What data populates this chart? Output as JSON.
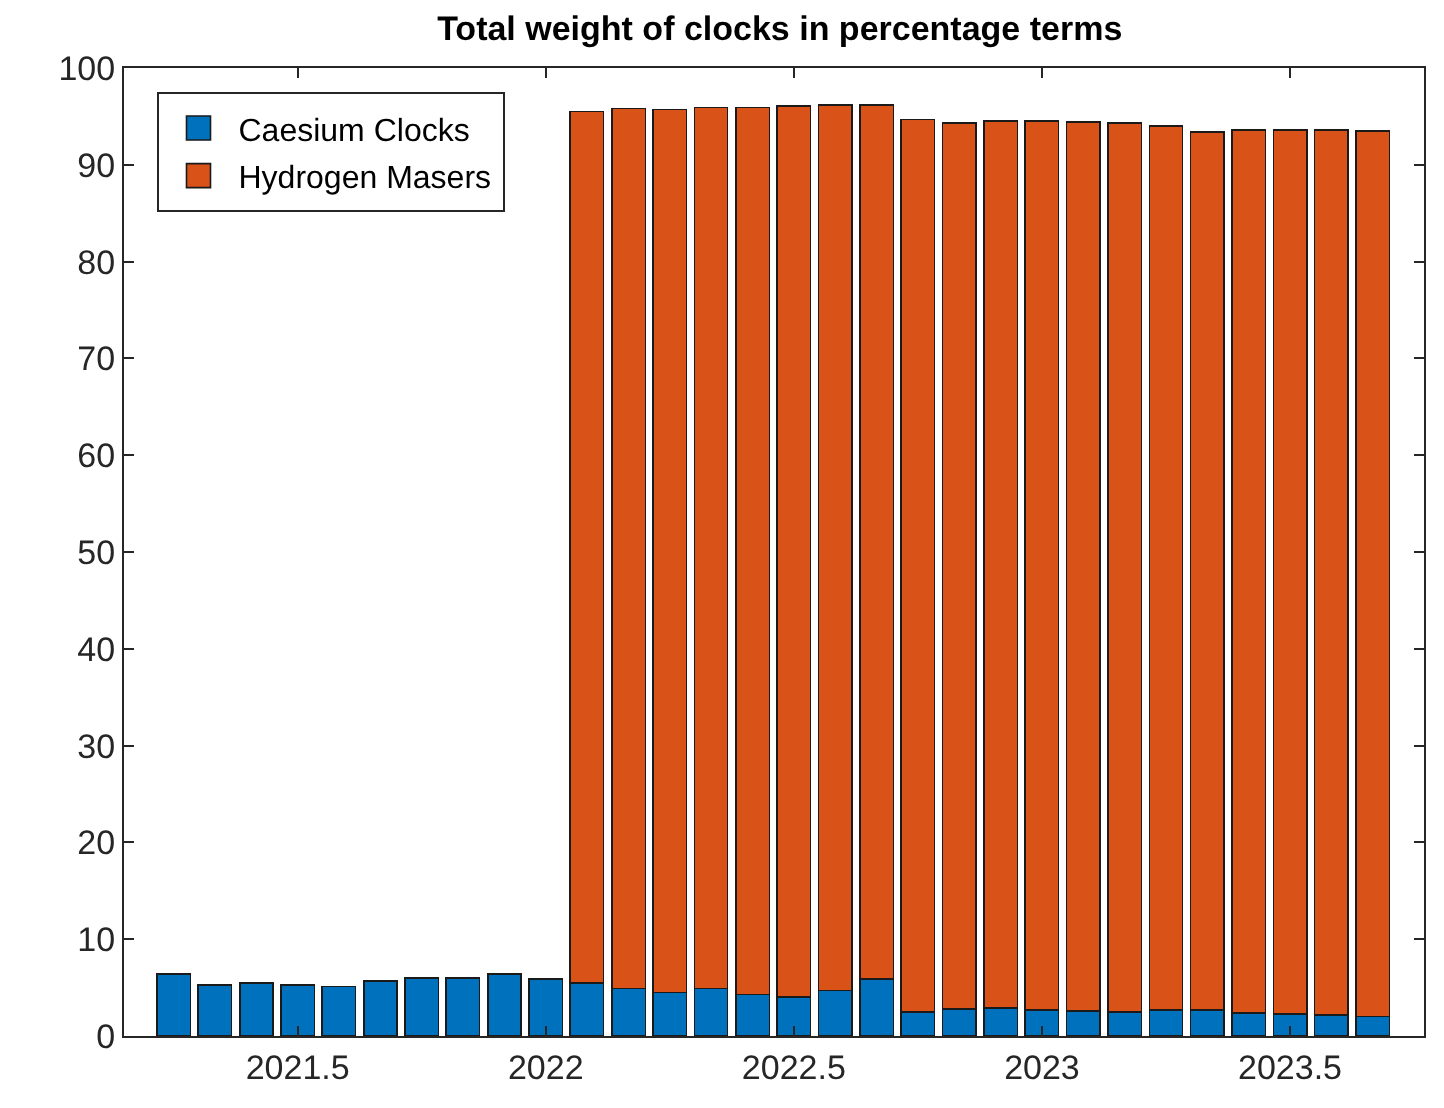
{
  "chart_data": {
    "type": "bar",
    "title": "Total weight of clocks in percentage terms",
    "stacked": true,
    "x": [
      2021.25,
      2021.333,
      2021.417,
      2021.5,
      2021.583,
      2021.667,
      2021.75,
      2021.833,
      2021.917,
      2022,
      2022.083,
      2022.167,
      2022.25,
      2022.333,
      2022.417,
      2022.5,
      2022.583,
      2022.667,
      2022.75,
      2022.833,
      2022.917,
      2023,
      2023.083,
      2023.167,
      2023.25,
      2023.333,
      2023.417,
      2023.5,
      2023.583,
      2023.667
    ],
    "series": [
      {
        "name": "Caesium Clocks",
        "color": "#0072bd",
        "values": [
          6.4,
          5.3,
          5.5,
          5.3,
          5.1,
          5.7,
          6.0,
          6.0,
          6.4,
          5.9,
          5.5,
          4.9,
          4.5,
          4.9,
          4.3,
          4.0,
          4.7,
          5.9,
          2.5,
          2.8,
          2.9,
          2.7,
          2.6,
          2.5,
          2.7,
          2.7,
          2.4,
          2.3,
          2.2,
          2.0
        ]
      },
      {
        "name": "Hydrogen Masers",
        "color": "#d95319",
        "values": [
          null,
          null,
          null,
          null,
          null,
          null,
          null,
          null,
          null,
          null,
          90.0,
          90.9,
          91.2,
          91.0,
          91.6,
          92.1,
          91.5,
          90.3,
          92.2,
          91.5,
          91.6,
          91.8,
          91.8,
          91.8,
          91.3,
          90.7,
          91.2,
          91.3,
          91.4,
          91.5
        ]
      }
    ],
    "xlim": [
      2021.15,
      2023.77
    ],
    "xticks": [
      2021.5,
      2022,
      2022.5,
      2023,
      2023.5
    ],
    "ylim": [
      0,
      100
    ],
    "yticks": [
      0,
      10,
      20,
      30,
      40,
      50,
      60,
      70,
      80,
      90,
      100
    ],
    "legend": "top left"
  }
}
